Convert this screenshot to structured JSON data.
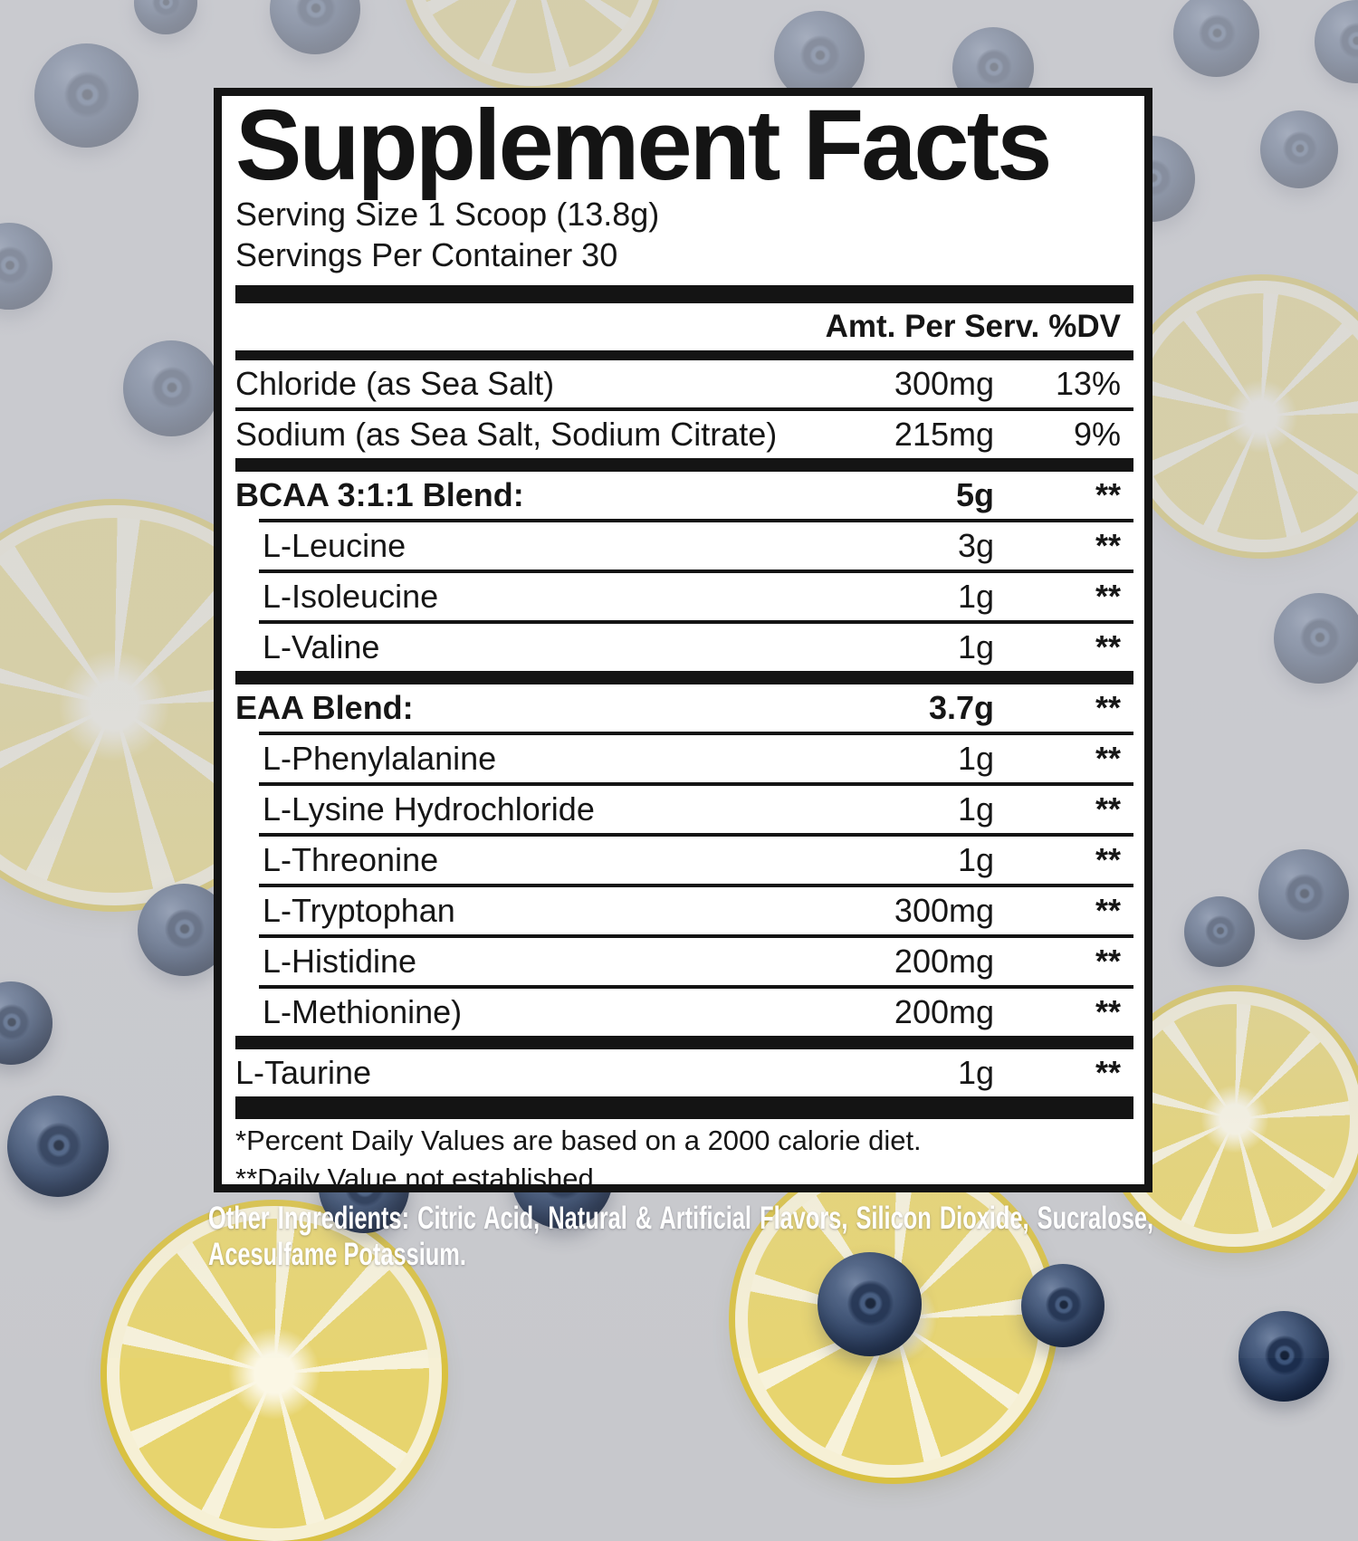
{
  "label": {
    "title": "Supplement Facts",
    "serving_size": "Serving Size 1 Scoop (13.8g)",
    "servings_per_container": "Servings Per Container 30",
    "columns": {
      "amount": "Amt. Per Serv.",
      "dv": "%DV"
    },
    "rows": [
      {
        "name": "Chloride (as Sea Salt)",
        "amount": "300mg",
        "dv": "13%",
        "bold": false,
        "indent": false,
        "sep": "none"
      },
      {
        "name": "Sodium (as Sea Salt, Sodium Citrate)",
        "amount": "215mg",
        "dv": "9%",
        "bold": false,
        "indent": false,
        "sep": "thin"
      },
      {
        "name": "BCAA 3:1:1 Blend:",
        "amount": "5g",
        "dv": "**",
        "bold": true,
        "indent": false,
        "sep": "thick"
      },
      {
        "name": "L-Leucine",
        "amount": "3g",
        "dv": "**",
        "bold": false,
        "indent": true,
        "sep": "thin-indent"
      },
      {
        "name": "L-Isoleucine",
        "amount": "1g",
        "dv": "**",
        "bold": false,
        "indent": true,
        "sep": "thin-indent"
      },
      {
        "name": "L-Valine",
        "amount": "1g",
        "dv": "**",
        "bold": false,
        "indent": true,
        "sep": "thin-indent"
      },
      {
        "name": "EAA Blend:",
        "amount": "3.7g",
        "dv": "**",
        "bold": true,
        "indent": false,
        "sep": "thick"
      },
      {
        "name": "L-Phenylalanine",
        "amount": "1g",
        "dv": "**",
        "bold": false,
        "indent": true,
        "sep": "thin-indent"
      },
      {
        "name": "L-Lysine Hydrochloride",
        "amount": "1g",
        "dv": "**",
        "bold": false,
        "indent": true,
        "sep": "thin-indent"
      },
      {
        "name": "L-Threonine",
        "amount": "1g",
        "dv": "**",
        "bold": false,
        "indent": true,
        "sep": "thin-indent"
      },
      {
        "name": "L-Tryptophan",
        "amount": "300mg",
        "dv": "**",
        "bold": false,
        "indent": true,
        "sep": "thin-indent"
      },
      {
        "name": "L-Histidine",
        "amount": "200mg",
        "dv": "**",
        "bold": false,
        "indent": true,
        "sep": "thin-indent"
      },
      {
        "name": "L-Methionine)",
        "amount": "200mg",
        "dv": "**",
        "bold": false,
        "indent": true,
        "sep": "thin-indent"
      },
      {
        "name": "L-Taurine",
        "amount": "1g",
        "dv": "**",
        "bold": false,
        "indent": false,
        "sep": "thick"
      }
    ],
    "footnotes": [
      "*Percent Daily Values are based on a 2000 calorie diet.",
      "**Daily Value not established"
    ]
  },
  "other_ingredients": "Other Ingredients: Citric Acid, Natural & Artificial Flavors, Silicon Dioxide, Sucralose, Acesulfame Potassium.",
  "colors": {
    "ink": "#141414",
    "panel_bg": "#ffffff",
    "background": "#c7c8cc",
    "blueberry": "#26395b",
    "lemon_pulp": "#e7d46e",
    "lemon_rind": "#f6f0d5",
    "lemon_peel": "#d9c141",
    "other_ingredients_text": "#ffffff"
  },
  "background_images": {
    "blueberry_icon": "blueberry-photo",
    "lemon_icon": "lemon-slice-photo"
  }
}
